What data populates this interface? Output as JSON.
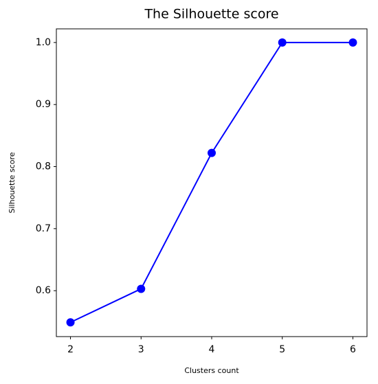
{
  "chart_data": {
    "type": "line",
    "title": "The Silhouette score",
    "x_label": "Clusters count",
    "y_label": "Silhouette score",
    "x": [
      2,
      3,
      4,
      5,
      6
    ],
    "series": [
      {
        "name": "Silhouette score",
        "color": "#0000ff",
        "values": [
          0.549,
          0.603,
          0.822,
          1.0,
          1.0
        ]
      }
    ],
    "xlim": [
      1.8,
      6.2
    ],
    "ylim": [
      0.526,
      1.022
    ],
    "xticks": [
      2,
      3,
      4,
      5,
      6
    ],
    "yticks": [
      0.6,
      0.7,
      0.8,
      0.9,
      {
        "value": 1.0,
        "label": "1.0"
      }
    ],
    "grid": false,
    "marker": true
  }
}
